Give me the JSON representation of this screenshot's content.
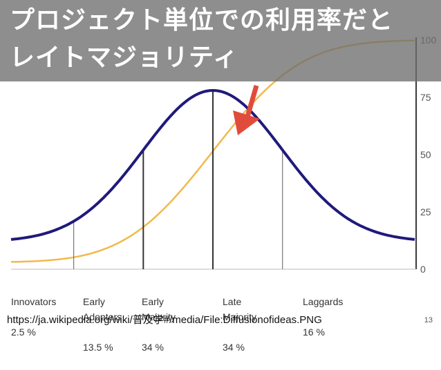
{
  "slide": {
    "title_line1": "プロジェクト単位での利用率だと",
    "title_line2": "レイトマジョリティ",
    "source": "https://ja.wikipedia.org/wiki/普及学#/media/File:Diffusionofideas.PNG",
    "page_number": "13"
  },
  "chart_data": {
    "type": "line",
    "y_ticks": [
      "0",
      "25",
      "50",
      "75",
      "100"
    ],
    "ylim": [
      0,
      100
    ],
    "categories": [
      {
        "name": "Innovators",
        "share": "2.5 %"
      },
      {
        "name": "Early Adopters",
        "share": "13.5 %"
      },
      {
        "name": "Early Majority",
        "share": "34 %"
      },
      {
        "name": "Late Majority",
        "share": "34 %"
      },
      {
        "name": "Laggards",
        "share": "16 %"
      }
    ],
    "std_dev_boundaries": [
      -2,
      -1,
      0,
      1
    ],
    "x_range_sd": [
      -2.9,
      2.9
    ],
    "series": [
      {
        "values": "normal adoption curve (bell)",
        "color": "#1f1a7a"
      },
      {
        "values": "cumulative market share (0–100)",
        "color": "#f2b84b"
      }
    ],
    "arrow_color": "#e14b3b"
  }
}
